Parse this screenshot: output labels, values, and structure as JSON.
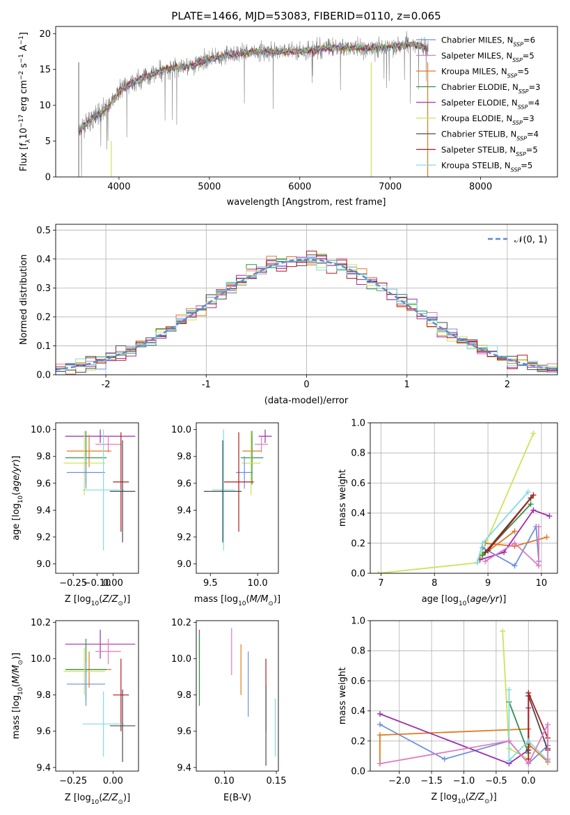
{
  "figure_title": "PLATE=1466, MJD=53083, FIBERID=0110, z=0.065",
  "colors": {
    "blue": "#6b8fe0",
    "orange": "#e07a1f",
    "green": "#2f8f4e",
    "purple": "#9b2fb0",
    "yellow": "#cde35a",
    "black": "#4a4a4a",
    "red": "#b01a1a",
    "cyan": "#7fdde0",
    "pink": "#e07ac0",
    "grey": "#808080"
  },
  "chart_data": [
    {
      "id": "spectrum",
      "type": "line",
      "xlabel": "wavelength [Angstrom, rest frame]",
      "ylabel": "Flux [f_λ10^-17 erg cm^-2 s^-1 A^-1]",
      "xlim": [
        3300,
        8850
      ],
      "ylim": [
        0,
        21
      ],
      "xticks": [
        4000,
        5000,
        6000,
        7000,
        8000
      ],
      "yticks": [
        0,
        5,
        10,
        15,
        20
      ],
      "legend_position": "right",
      "series": [
        {
          "name": "Chabrier MILES, N_SSP=6",
          "color": "#6b8fe0"
        },
        {
          "name": "Salpeter MILES, N_SSP=5",
          "color": "#e07ac0"
        },
        {
          "name": "Kroupa MILES, N_SSP=5",
          "color": "#e07a1f"
        },
        {
          "name": "Chabrier ELODIE, N_SSP=3",
          "color": "#2f8f4e"
        },
        {
          "name": "Salpeter ELODIE, N_SSP=4",
          "color": "#9b2fb0"
        },
        {
          "name": "Kroupa ELODIE, N_SSP=3",
          "color": "#cde35a"
        },
        {
          "name": "Chabrier STELIB, N_SSP=4",
          "color": "#4a4a4a"
        },
        {
          "name": "Salpeter STELIB, N_SSP=5",
          "color": "#b01a1a"
        },
        {
          "name": "Kroupa STELIB, N_SSP=5",
          "color": "#7fdde0"
        }
      ],
      "continuum": {
        "x": [
          3550,
          3700,
          3900,
          4000,
          4200,
          4500,
          4800,
          5000,
          5200,
          5500,
          5800,
          6000,
          6300,
          6600,
          6900,
          7200,
          7500
        ],
        "y": [
          6.5,
          8,
          10,
          12,
          13.5,
          15,
          15.5,
          16.5,
          17,
          17.5,
          17.5,
          17.5,
          18,
          18,
          18,
          18.5,
          18
        ]
      }
    },
    {
      "id": "residuals",
      "type": "histogram",
      "xlabel": "(data-model)/error",
      "ylabel": "Normed distribution",
      "xlim": [
        -2.5,
        2.5
      ],
      "ylim": [
        0,
        0.52
      ],
      "xticks": [
        -2,
        -1,
        0,
        1,
        2
      ],
      "yticks": [
        0.0,
        0.1,
        0.2,
        0.3,
        0.4,
        0.5
      ],
      "grid": true,
      "legend": [
        "$\\mathcal{N}(0,1)$"
      ],
      "legend_label": "𝒩(0, 1)",
      "bin_width": 0.1
    },
    {
      "id": "age_vs_Z",
      "type": "errorbar",
      "xlabel": "Z [log10(Z/Z⊙)]",
      "ylabel": "age  [log10(age/yr)]",
      "xlim": [
        -0.36,
        0.16
      ],
      "ylim": [
        8.93,
        10.05
      ],
      "xticks": [
        -0.25,
        -0.1,
        0.0
      ],
      "xtick_labels": [
        "−0.25",
        "−0.10",
        "0.00"
      ],
      "yticks": [
        9.0,
        9.2,
        9.4,
        9.6,
        9.8,
        10.0
      ],
      "points": [
        {
          "color": "#9b2fb0",
          "x": -0.08,
          "xerr": 0.22,
          "y": 9.95,
          "yerr": 0.05
        },
        {
          "color": "#e07ac0",
          "x": -0.03,
          "xerr": 0.08,
          "y": 9.89,
          "yerr": 0.06
        },
        {
          "color": "#e07a1f",
          "x": -0.15,
          "xerr": 0.14,
          "y": 9.84,
          "yerr": 0.12
        },
        {
          "color": "#2f8f4e",
          "x": -0.17,
          "xerr": 0.13,
          "y": 9.79,
          "yerr": 0.2
        },
        {
          "color": "#cde35a",
          "x": -0.18,
          "xerr": 0.13,
          "y": 9.75,
          "yerr": 0.24
        },
        {
          "color": "#6b8fe0",
          "x": -0.17,
          "xerr": 0.12,
          "y": 9.68,
          "yerr": 0.12
        },
        {
          "color": "#b01a1a",
          "x": 0.05,
          "xerr": 0.05,
          "y": 9.61,
          "yerr": 0.37
        },
        {
          "color": "#7fdde0",
          "x": -0.06,
          "xerr": 0.13,
          "y": 9.55,
          "yerr": 0.45
        },
        {
          "color": "#4a4a4a",
          "x": 0.06,
          "xerr": 0.08,
          "y": 9.54,
          "yerr": 0.38
        }
      ]
    },
    {
      "id": "age_vs_mass",
      "type": "errorbar",
      "xlabel": "mass [log10(M/M⊙)]",
      "xlim": [
        9.35,
        10.22
      ],
      "ylim": [
        8.93,
        10.05
      ],
      "xticks": [
        9.5,
        10.0
      ],
      "xtick_labels": [
        "9.5",
        "10.0"
      ],
      "yticks": [
        9.0,
        9.2,
        9.4,
        9.6,
        9.8,
        10.0
      ],
      "points": [
        {
          "color": "#9b2fb0",
          "x": 10.08,
          "xerr": 0.07,
          "y": 9.95,
          "yerr": 0.05
        },
        {
          "color": "#e07ac0",
          "x": 10.04,
          "xerr": 0.07,
          "y": 9.89,
          "yerr": 0.06
        },
        {
          "color": "#e07a1f",
          "x": 9.94,
          "xerr": 0.1,
          "y": 9.84,
          "yerr": 0.12
        },
        {
          "color": "#2f8f4e",
          "x": 9.94,
          "xerr": 0.12,
          "y": 9.79,
          "yerr": 0.2
        },
        {
          "color": "#cde35a",
          "x": 9.93,
          "xerr": 0.1,
          "y": 9.75,
          "yerr": 0.24
        },
        {
          "color": "#6b8fe0",
          "x": 9.86,
          "xerr": 0.09,
          "y": 9.68,
          "yerr": 0.12
        },
        {
          "color": "#b01a1a",
          "x": 9.8,
          "xerr": 0.16,
          "y": 9.61,
          "yerr": 0.37
        },
        {
          "color": "#7fdde0",
          "x": 9.64,
          "xerr": 0.12,
          "y": 9.55,
          "yerr": 0.45
        },
        {
          "color": "#4a4a4a",
          "x": 9.63,
          "xerr": 0.2,
          "y": 9.54,
          "yerr": 0.38
        }
      ]
    },
    {
      "id": "weight_vs_age",
      "type": "line",
      "xlabel": "age  [log10(age/yr)]",
      "ylabel": "mass weight",
      "xlim": [
        6.8,
        10.3
      ],
      "ylim": [
        0,
        1.0
      ],
      "xticks": [
        7,
        8,
        9,
        10
      ],
      "yticks": [
        0.0,
        0.2,
        0.4,
        0.6,
        0.8,
        1.0
      ],
      "grid": true,
      "series": [
        {
          "color": "#cde35a",
          "x": [
            6.95,
            8.8,
            9.85
          ],
          "y": [
            0.0,
            0.07,
            0.93
          ]
        },
        {
          "color": "#cde35a",
          "x": [
            8.85,
            9.8
          ],
          "y": [
            0.1,
            0.5
          ]
        },
        {
          "color": "#6b8fe0",
          "x": [
            8.9,
            9.5,
            9.9,
            9.95
          ],
          "y": [
            0.17,
            0.05,
            0.31,
            0.08
          ]
        },
        {
          "color": "#e07a1f",
          "x": [
            8.95,
            9.5,
            10.1
          ],
          "y": [
            0.2,
            0.18,
            0.24
          ]
        },
        {
          "color": "#e07a1f",
          "x": [
            8.9,
            9.5
          ],
          "y": [
            0.12,
            0.28
          ]
        },
        {
          "color": "#9b2fb0",
          "x": [
            8.85,
            9.3,
            9.85,
            10.15
          ],
          "y": [
            0.09,
            0.14,
            0.42,
            0.38
          ]
        },
        {
          "color": "#2f8f4e",
          "x": [
            8.9,
            9.8
          ],
          "y": [
            0.12,
            0.46
          ]
        },
        {
          "color": "#4a4a4a",
          "x": [
            8.95,
            9.8
          ],
          "y": [
            0.14,
            0.5
          ]
        },
        {
          "color": "#b01a1a",
          "x": [
            9.0,
            9.85
          ],
          "y": [
            0.15,
            0.52
          ]
        },
        {
          "color": "#7fdde0",
          "x": [
            8.8,
            8.9,
            9.75
          ],
          "y": [
            0.07,
            0.2,
            0.54
          ]
        },
        {
          "color": "#e07ac0",
          "x": [
            8.95,
            9.5,
            9.95,
            9.95
          ],
          "y": [
            0.08,
            0.2,
            0.05,
            0.31
          ]
        }
      ]
    },
    {
      "id": "mass_vs_Z",
      "type": "errorbar",
      "xlabel": "Z [log10(Z/Z⊙)]",
      "ylabel": "mass [log10(M/M⊙)]",
      "xlim": [
        -0.36,
        0.16
      ],
      "ylim": [
        9.38,
        10.21
      ],
      "xticks": [
        -0.25,
        0.0
      ],
      "xtick_labels": [
        "−0.25",
        "0.00"
      ],
      "yticks": [
        9.4,
        9.6,
        9.8,
        10.0,
        10.2
      ],
      "points": [
        {
          "color": "#9b2fb0",
          "x": -0.08,
          "xerr": 0.22,
          "y": 10.08,
          "yerr": 0.08
        },
        {
          "color": "#e07ac0",
          "x": -0.03,
          "xerr": 0.08,
          "y": 10.04,
          "yerr": 0.07
        },
        {
          "color": "#e07a1f",
          "x": -0.15,
          "xerr": 0.14,
          "y": 9.94,
          "yerr": 0.1
        },
        {
          "color": "#2f8f4e",
          "x": -0.17,
          "xerr": 0.13,
          "y": 9.94,
          "yerr": 0.17
        },
        {
          "color": "#cde35a",
          "x": -0.18,
          "xerr": 0.13,
          "y": 9.93,
          "yerr": 0.13
        },
        {
          "color": "#6b8fe0",
          "x": -0.17,
          "xerr": 0.12,
          "y": 9.86,
          "yerr": 0.12
        },
        {
          "color": "#b01a1a",
          "x": 0.05,
          "xerr": 0.05,
          "y": 9.8,
          "yerr": 0.2
        },
        {
          "color": "#7fdde0",
          "x": -0.06,
          "xerr": 0.13,
          "y": 9.64,
          "yerr": 0.18
        },
        {
          "color": "#4a4a4a",
          "x": 0.06,
          "xerr": 0.08,
          "y": 9.63,
          "yerr": 0.2
        }
      ]
    },
    {
      "id": "mass_vs_EBV",
      "type": "errorbar",
      "xlabel": "E(B-V)",
      "xlim": [
        0.073,
        0.152
      ],
      "ylim": [
        9.38,
        10.21
      ],
      "xticks": [
        0.1,
        0.15
      ],
      "xtick_labels": [
        "0.10",
        "0.15"
      ],
      "yticks": [
        9.4,
        9.6,
        9.8,
        10.0,
        10.2
      ],
      "points": [
        {
          "color": "#9b2fb0",
          "x": 0.076,
          "y": 10.08,
          "yerr": 0.08
        },
        {
          "color": "#cde35a",
          "x": 0.076,
          "y": 9.93,
          "yerr": 0.13
        },
        {
          "color": "#2f8f4e",
          "x": 0.076,
          "y": 9.94,
          "yerr": 0.2
        },
        {
          "color": "#e07ac0",
          "x": 0.107,
          "y": 10.04,
          "yerr": 0.13
        },
        {
          "color": "#e07a1f",
          "x": 0.116,
          "y": 9.94,
          "yerr": 0.14
        },
        {
          "color": "#6b8fe0",
          "x": 0.123,
          "y": 9.86,
          "yerr": 0.18
        },
        {
          "color": "#b01a1a",
          "x": 0.14,
          "y": 9.8,
          "yerr": 0.2
        },
        {
          "color": "#4a4a4a",
          "x": 0.14,
          "y": 9.63,
          "yerr": 0.22
        },
        {
          "color": "#7fdde0",
          "x": 0.149,
          "y": 9.62,
          "yerr": 0.16
        }
      ]
    },
    {
      "id": "weight_vs_Z",
      "type": "line",
      "xlabel": "Z [log10(Z/Z⊙)]",
      "ylabel": "mass weight",
      "xlim": [
        -2.45,
        0.45
      ],
      "ylim": [
        0,
        1.0
      ],
      "xticks": [
        -2.0,
        -1.5,
        -1.0,
        -0.5,
        0.0
      ],
      "xtick_labels": [
        "−2.0",
        "−1.5",
        "−1.0",
        "−0.5",
        "0.0"
      ],
      "yticks": [
        0.0,
        0.2,
        0.4,
        0.6,
        0.8,
        1.0
      ],
      "grid": true,
      "series": [
        {
          "color": "#cde35a",
          "x": [
            -0.4,
            -0.3,
            0.0
          ],
          "y": [
            0.93,
            0.15,
            0.08
          ]
        },
        {
          "color": "#6b8fe0",
          "x": [
            -2.3,
            -1.3,
            -0.3,
            0.0,
            0.3
          ],
          "y": [
            0.31,
            0.08,
            0.2,
            0.05,
            0.17
          ]
        },
        {
          "color": "#e07a1f",
          "x": [
            -2.3,
            -2.3,
            0.0,
            0.0,
            0.3
          ],
          "y": [
            0.05,
            0.24,
            0.28,
            0.18,
            0.06
          ]
        },
        {
          "color": "#9b2fb0",
          "x": [
            -2.3,
            -0.3,
            0.0,
            0.0
          ],
          "y": [
            0.38,
            0.05,
            0.14,
            0.42
          ]
        },
        {
          "color": "#2f8f4e",
          "x": [
            -0.3,
            0.0,
            0.0
          ],
          "y": [
            0.46,
            0.12,
            0.16
          ]
        },
        {
          "color": "#4a4a4a",
          "x": [
            0.0,
            0.0,
            0.3
          ],
          "y": [
            0.14,
            0.5,
            0.14
          ]
        },
        {
          "color": "#b01a1a",
          "x": [
            0.0,
            0.0,
            0.3,
            0.3
          ],
          "y": [
            0.08,
            0.52,
            0.22,
            0.15
          ]
        },
        {
          "color": "#7fdde0",
          "x": [
            -0.3,
            -0.3,
            0.0,
            0.3
          ],
          "y": [
            0.54,
            0.07,
            0.2,
            0.07
          ]
        },
        {
          "color": "#e07ac0",
          "x": [
            -2.3,
            -0.3,
            0.0,
            0.3,
            0.3
          ],
          "y": [
            0.05,
            0.2,
            0.05,
            0.31,
            0.08
          ]
        }
      ]
    }
  ]
}
